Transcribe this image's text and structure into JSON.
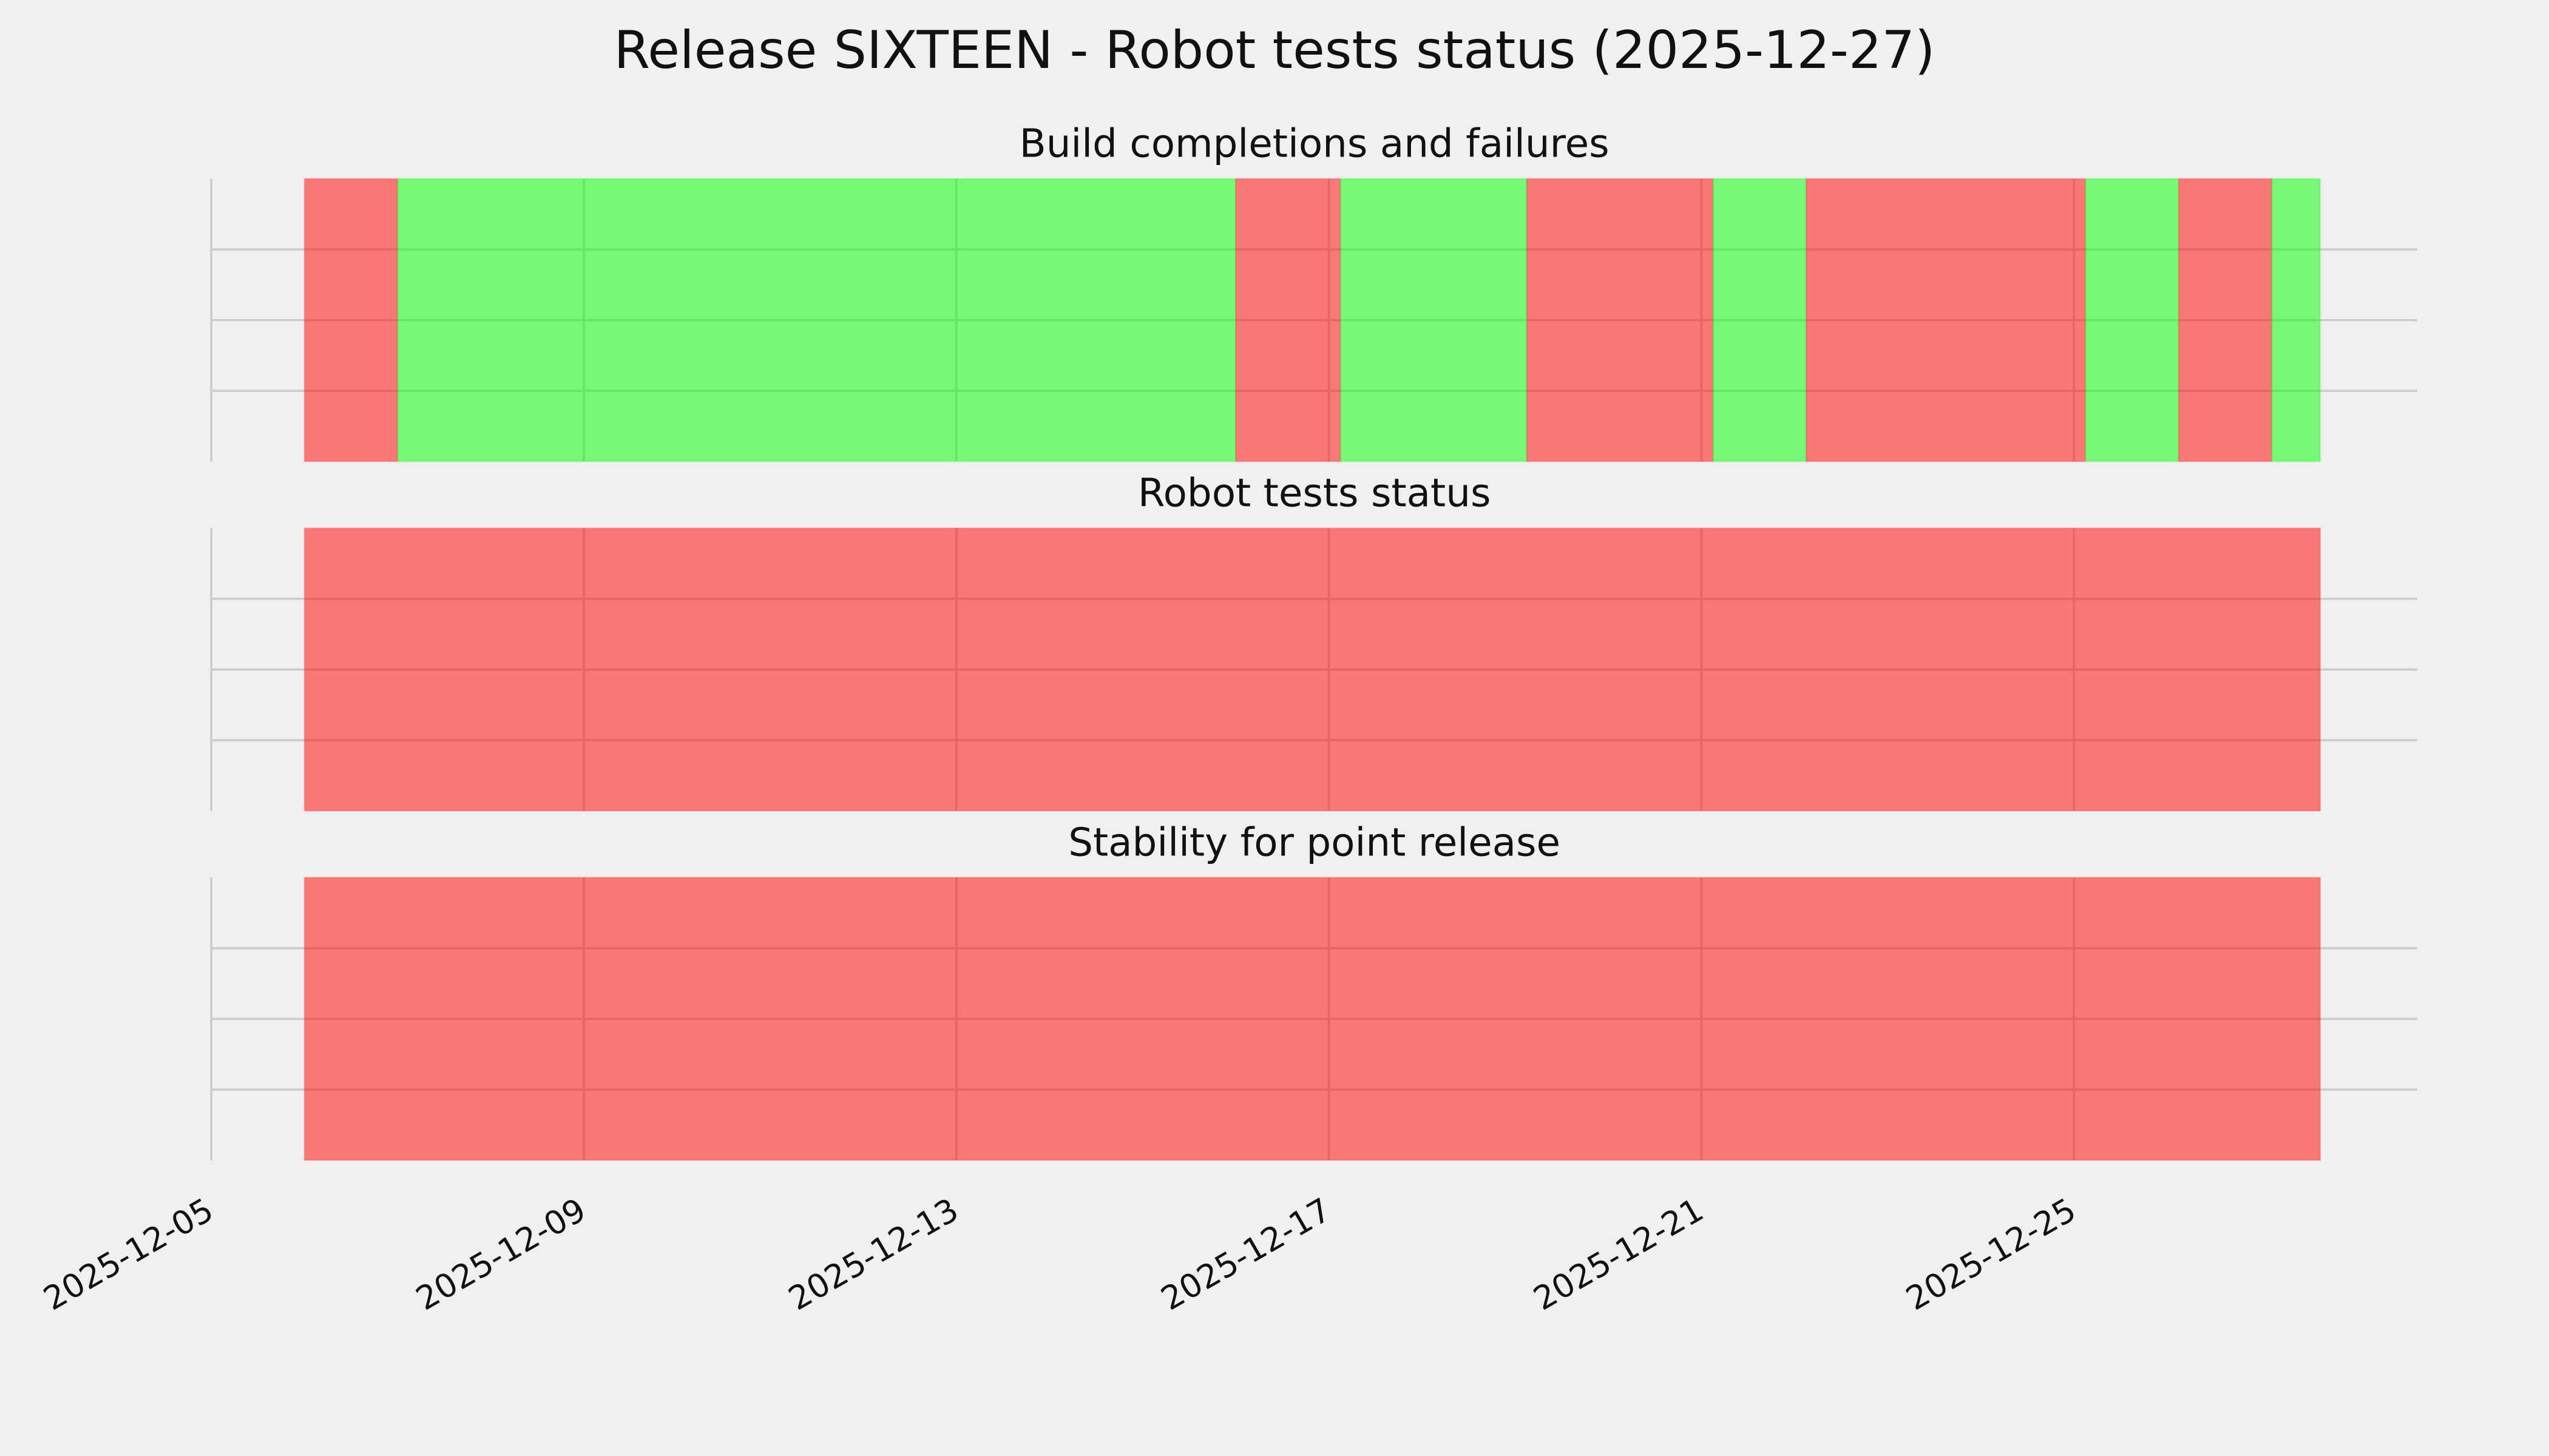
{
  "chart_data": [
    {
      "type": "timeline",
      "suptitle": "Release SIXTEEN - Robot tests status (2025-12-27)",
      "title": "Build completions and failures",
      "spans": [
        {
          "start": "2025-12-06",
          "end": "2025-12-07",
          "color": "#ff0000"
        },
        {
          "start": "2025-12-07",
          "end": "2025-12-16",
          "color": "#00ff00"
        },
        {
          "start": "2025-12-16",
          "end": "2025-12-17T03:00",
          "color": "#ff0000"
        },
        {
          "start": "2025-12-17T03:00",
          "end": "2025-12-19T03:00",
          "color": "#00ff00"
        },
        {
          "start": "2025-12-19T03:00",
          "end": "2025-12-21T03:00",
          "color": "#ff0000"
        },
        {
          "start": "2025-12-21T03:00",
          "end": "2025-12-22T03:00",
          "color": "#00ff00"
        },
        {
          "start": "2025-12-22T03:00",
          "end": "2025-12-25T03:00",
          "color": "#ff0000"
        },
        {
          "start": "2025-12-25T03:00",
          "end": "2025-12-26T03:00",
          "color": "#00ff00"
        },
        {
          "start": "2025-12-26T03:00",
          "end": "2025-12-27T03:00",
          "color": "#ff0000"
        },
        {
          "start": "2025-12-27T03:00",
          "end": "2025-12-27T15:30",
          "color": "#00ff00"
        }
      ],
      "xlim": [
        "2025-12-05",
        "2025-12-28T16:30"
      ],
      "ylim": [
        0,
        1
      ],
      "yticks": [
        0.25,
        0.5,
        0.75
      ],
      "grid": true
    },
    {
      "type": "timeline",
      "title": "Robot tests status",
      "spans": [
        {
          "start": "2025-12-06",
          "end": "2025-12-27T15:30",
          "color": "#ff0000"
        }
      ],
      "xlim": [
        "2025-12-05",
        "2025-12-28T16:30"
      ],
      "ylim": [
        0,
        1
      ],
      "yticks": [
        0.25,
        0.5,
        0.75
      ],
      "grid": true
    },
    {
      "type": "timeline",
      "title": "Stability for point release",
      "spans": [
        {
          "start": "2025-12-06",
          "end": "2025-12-27T15:30",
          "color": "#ff0000"
        }
      ],
      "xlim": [
        "2025-12-05",
        "2025-12-28T16:30"
      ],
      "ylim": [
        0,
        1
      ],
      "yticks": [
        0.25,
        0.5,
        0.75
      ],
      "grid": true,
      "xticks": [
        "2025-12-05",
        "2025-12-09",
        "2025-12-13",
        "2025-12-17",
        "2025-12-21",
        "2025-12-25"
      ]
    }
  ]
}
